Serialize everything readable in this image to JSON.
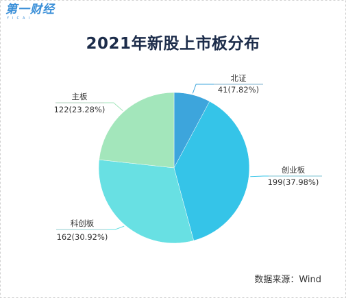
{
  "brand": {
    "logo_text": "第一财经",
    "logo_subtext": "YICAI"
  },
  "chart_data": {
    "type": "pie",
    "title": "2021年新股上市板分布",
    "slices": [
      {
        "name": "北证",
        "value": 41,
        "percent": 7.82,
        "label": "41(7.82%)",
        "color": "#3da5dc"
      },
      {
        "name": "创业板",
        "value": 199,
        "percent": 37.98,
        "label": "199(37.98%)",
        "color": "#35c4e8"
      },
      {
        "name": "科创板",
        "value": 162,
        "percent": 30.92,
        "label": "162(30.92%)",
        "color": "#68e0e3"
      },
      {
        "name": "主板",
        "value": 122,
        "percent": 23.28,
        "label": "122(23.28%)",
        "color": "#a3e6bb"
      }
    ],
    "start": "top",
    "direction": "clockwise"
  },
  "footer": {
    "source": "数据来源：Wind"
  }
}
